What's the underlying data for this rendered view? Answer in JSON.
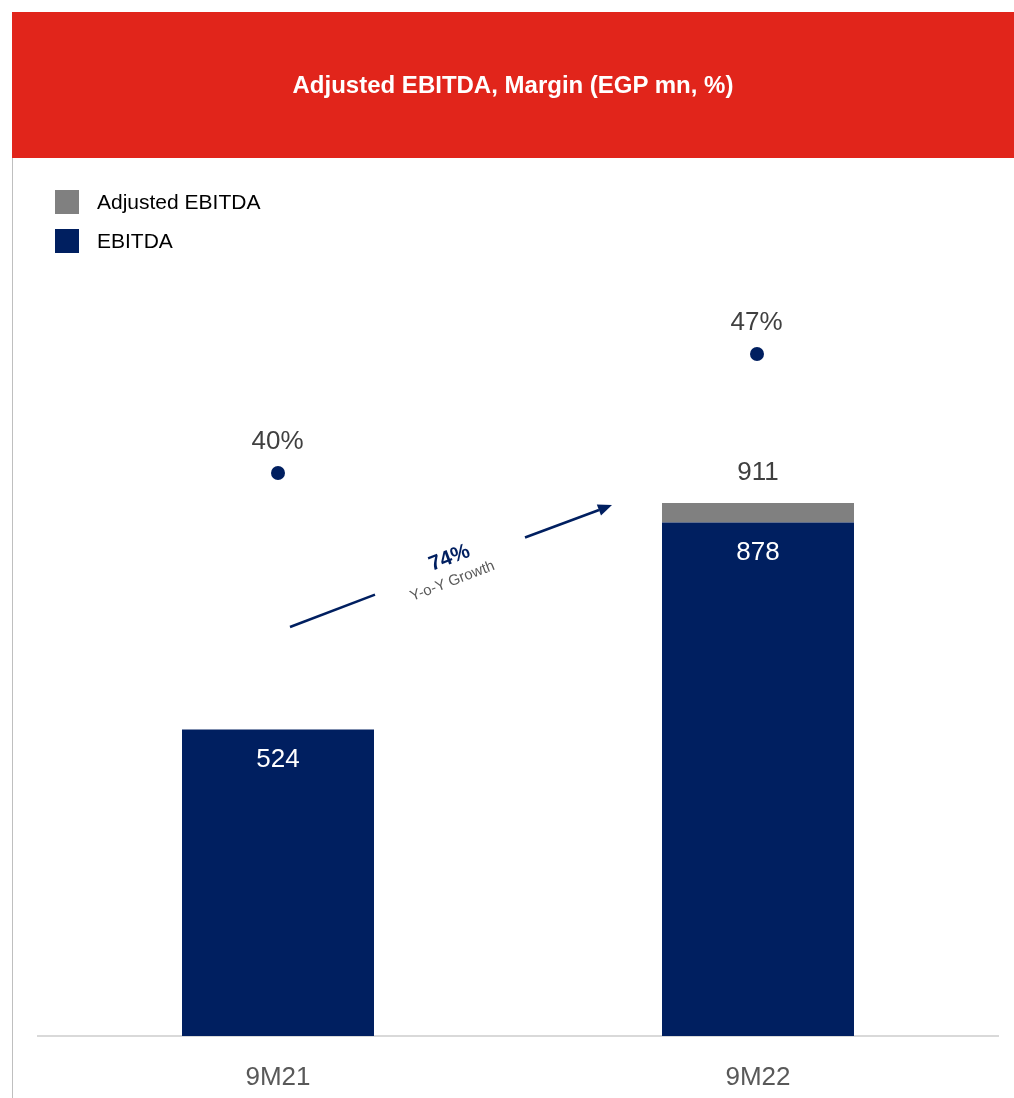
{
  "chart_data": {
    "type": "bar",
    "title": "Adjusted EBITDA, Margin (EGP mn, %)",
    "categories": [
      "9M21",
      "9M22"
    ],
    "stacked": true,
    "legend": "top left",
    "totals": [
      null,
      "911"
    ],
    "annotations": [
      "74%",
      "Y-o-Y Growth",
      "40%",
      "47%"
    ],
    "series": [
      {
        "name": "EBITDA",
        "color": "#001f60",
        "values": [
          524,
          878
        ],
        "value_labels": [
          "524",
          "878"
        ]
      },
      {
        "name": "Adjusted EBITDA",
        "color": "#808080",
        "values": [
          null,
          33
        ]
      }
    ]
  }
}
